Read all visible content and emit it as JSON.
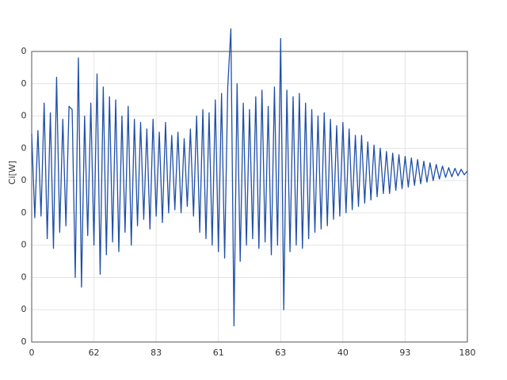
{
  "chart_data": {
    "type": "line",
    "ylabel": "Ci[W]",
    "color": "#1f4fa8",
    "grid": true,
    "xlim": [
      0,
      7
    ],
    "xticks": [
      0,
      {
        "value": 1,
        "label": "62"
      },
      {
        "value": 2,
        "label": "83"
      },
      {
        "value": 3,
        "label": "61"
      },
      {
        "value": 4,
        "label": "63"
      },
      {
        "value": 5,
        "label": "40"
      },
      {
        "value": 6,
        "label": "93"
      },
      {
        "value": 7,
        "label": "180"
      }
    ],
    "ylim": [
      0,
      9
    ],
    "yticks": [
      0,
      {
        "value": 1,
        "label": "0"
      },
      {
        "value": 2,
        "label": "0"
      },
      {
        "value": 3,
        "label": "0"
      },
      {
        "value": 4,
        "label": "0"
      },
      {
        "value": 5,
        "label": "0"
      },
      {
        "value": 6,
        "label": "0"
      },
      {
        "value": 7,
        "label": "0"
      },
      {
        "value": 8,
        "label": "0"
      },
      {
        "value": 9,
        "label": "0"
      }
    ],
    "x": [
      0,
      0.05,
      0.1,
      0.15,
      0.2,
      0.25,
      0.3,
      0.35,
      0.4,
      0.45,
      0.5,
      0.55,
      0.6,
      0.65,
      0.7,
      0.75,
      0.8,
      0.85,
      0.9,
      0.95,
      1,
      1.05,
      1.1,
      1.15,
      1.2,
      1.25,
      1.3,
      1.35,
      1.4,
      1.45,
      1.5,
      1.55,
      1.6,
      1.65,
      1.7,
      1.75,
      1.8,
      1.85,
      1.9,
      1.95,
      2,
      2.05,
      2.1,
      2.15,
      2.2,
      2.25,
      2.3,
      2.35,
      2.4,
      2.45,
      2.5,
      2.55,
      2.6,
      2.65,
      2.7,
      2.75,
      2.8,
      2.85,
      2.9,
      2.95,
      3,
      3.05,
      3.1,
      3.15,
      3.2,
      3.25,
      3.3,
      3.35,
      3.4,
      3.45,
      3.5,
      3.55,
      3.6,
      3.65,
      3.7,
      3.75,
      3.8,
      3.85,
      3.9,
      3.95,
      4,
      4.05,
      4.1,
      4.15,
      4.2,
      4.25,
      4.3,
      4.35,
      4.4,
      4.45,
      4.5,
      4.55,
      4.6,
      4.65,
      4.7,
      4.75,
      4.8,
      4.85,
      4.9,
      4.95,
      5,
      5.05,
      5.1,
      5.15,
      5.2,
      5.25,
      5.3,
      5.35,
      5.4,
      5.45,
      5.5,
      5.55,
      5.6,
      5.65,
      5.7,
      5.75,
      5.8,
      5.85,
      5.9,
      5.95,
      6,
      6.05,
      6.1,
      6.15,
      6.2,
      6.25,
      6.3,
      6.35,
      6.4,
      6.45,
      6.5,
      6.55,
      6.6,
      6.65,
      6.7,
      6.75,
      6.8,
      6.85,
      6.9,
      6.95,
      7
    ],
    "values": [
      6.45,
      3.85,
      6.55,
      3.9,
      7.4,
      3.2,
      7.1,
      2.9,
      8.2,
      3.4,
      6.9,
      3.6,
      7.3,
      7.2,
      2.0,
      8.8,
      1.7,
      7.0,
      3.3,
      7.4,
      3.0,
      8.3,
      2.1,
      7.9,
      2.7,
      7.6,
      3.1,
      7.5,
      2.8,
      7.0,
      3.4,
      7.3,
      3.0,
      6.9,
      3.6,
      6.8,
      3.8,
      6.6,
      3.5,
      6.9,
      3.9,
      6.5,
      3.7,
      6.8,
      4.0,
      6.4,
      4.1,
      6.5,
      4.0,
      6.3,
      4.2,
      6.6,
      3.9,
      7.0,
      3.4,
      7.2,
      3.2,
      7.1,
      3.0,
      7.5,
      2.8,
      7.7,
      2.6,
      7.9,
      9.7,
      0.5,
      8.0,
      2.5,
      7.4,
      3.0,
      7.2,
      3.2,
      7.6,
      2.9,
      7.8,
      3.1,
      7.3,
      2.7,
      7.9,
      3.0,
      9.4,
      1.0,
      7.8,
      2.8,
      7.6,
      3.0,
      7.7,
      2.9,
      7.4,
      3.2,
      7.2,
      3.4,
      7.0,
      3.5,
      7.1,
      3.6,
      6.9,
      3.8,
      6.7,
      3.9,
      6.8,
      4.0,
      6.6,
      4.1,
      6.4,
      4.2,
      6.4,
      4.3,
      6.2,
      4.4,
      6.1,
      4.5,
      6.0,
      4.6,
      5.9,
      4.6,
      5.85,
      4.7,
      5.8,
      4.75,
      5.75,
      4.8,
      5.7,
      4.85,
      5.65,
      4.9,
      5.6,
      4.95,
      5.55,
      5.0,
      5.5,
      5.05,
      5.45,
      5.1,
      5.4,
      5.12,
      5.38,
      5.15,
      5.35,
      5.18,
      5.3
    ]
  }
}
